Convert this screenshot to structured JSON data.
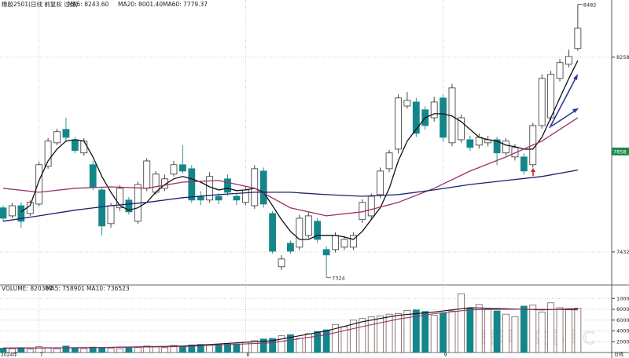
{
  "chart_data": {
    "type": "candlestick",
    "title": "橡胶2501(日线 前复权 过滤)",
    "indicators": [
      "MA5: 8243.60",
      "MA20: 8001.40",
      "MA60: 7779.37"
    ],
    "indicator_colors": [
      "#111111",
      "#9b2f6e",
      "#1b1f6b"
    ],
    "categories": [
      "2024年",
      null,
      null,
      null,
      "7",
      null,
      null,
      null,
      null,
      null,
      null,
      null,
      null,
      null,
      null,
      null,
      null,
      null,
      null,
      null,
      null,
      null,
      null,
      null,
      null,
      null,
      null,
      "8",
      null,
      null,
      null,
      null,
      null,
      null,
      null,
      null,
      null,
      null,
      null,
      null,
      null,
      null,
      null,
      null,
      null,
      null,
      null,
      null,
      null,
      "9",
      null,
      null,
      null,
      null,
      null,
      null,
      null,
      null,
      null,
      null,
      null,
      null,
      null,
      null,
      null
    ],
    "open": [
      7619,
      7585,
      7628,
      7595,
      7635,
      7795,
      7895,
      7952,
      7908,
      7852,
      7802,
      7695,
      7552,
      7619,
      7652,
      7562,
      7702,
      7685,
      7702,
      7762,
      7802,
      7785,
      7668,
      7652,
      7668,
      7742,
      7668,
      7642,
      7628,
      7775,
      7595,
      7369,
      7469,
      7452,
      7502,
      7562,
      7442,
      7442,
      7452,
      7452,
      7569,
      7585,
      7675,
      7785,
      7868,
      8051,
      8068,
      8035,
      8001,
      8085,
      7895,
      7908,
      7908,
      7885,
      7895,
      7908,
      7852,
      7835,
      7835,
      7802,
      7968,
      8001,
      8168,
      8228,
      8295
    ],
    "high": [
      7628,
      7640,
      7642,
      7650,
      7815,
      7915,
      7955,
      8001,
      7920,
      7915,
      7818,
      7705,
      7640,
      7715,
      7665,
      7730,
      7830,
      7775,
      7760,
      7818,
      7885,
      7800,
      7690,
      7770,
      7680,
      7760,
      7680,
      7710,
      7800,
      7790,
      7605,
      7418,
      7480,
      7590,
      7600,
      7575,
      7455,
      7515,
      7500,
      7515,
      7655,
      7680,
      7790,
      7865,
      8100,
      8110,
      8085,
      8050,
      8090,
      8100,
      8145,
      8015,
      7925,
      7935,
      7925,
      7920,
      7915,
      7890,
      7850,
      7980,
      8185,
      8200,
      8250,
      8290,
      8482
    ],
    "low": [
      7562,
      7575,
      7535,
      7585,
      7625,
      7785,
      7885,
      7902,
      7850,
      7840,
      7695,
      7502,
      7535,
      7605,
      7590,
      7550,
      7690,
      7675,
      7690,
      7752,
      7765,
      7640,
      7630,
      7640,
      7635,
      7670,
      7630,
      7630,
      7615,
      7620,
      7425,
      7355,
      7425,
      7440,
      7490,
      7470,
      7324,
      7430,
      7440,
      7440,
      7555,
      7570,
      7660,
      7770,
      7850,
      8040,
      7920,
      7950,
      7985,
      7900,
      7880,
      7895,
      7860,
      7870,
      7880,
      7800,
      7840,
      7820,
      7760,
      7790,
      7955,
      7990,
      8155,
      8215,
      8285
    ],
    "close": [
      7575,
      7628,
      7562,
      7642,
      7802,
      7902,
      7942,
      7918,
      7862,
      7902,
      7708,
      7542,
      7628,
      7702,
      7602,
      7718,
      7818,
      7762,
      7742,
      7802,
      7775,
      7652,
      7652,
      7752,
      7652,
      7685,
      7652,
      7695,
      7785,
      7635,
      7435,
      7402,
      7435,
      7575,
      7585,
      7485,
      7419,
      7502,
      7485,
      7502,
      7642,
      7668,
      7775,
      7852,
      8085,
      8075,
      7935,
      7968,
      8068,
      7918,
      8128,
      8001,
      7875,
      7918,
      7908,
      7852,
      7902,
      7875,
      7775,
      7968,
      8168,
      8185,
      8235,
      8261,
      8381
    ],
    "up_color": "#ffffff",
    "up_edge": "#333333",
    "down_color": "#14868a",
    "ylim": [
      7295,
      8494
    ],
    "yticks": [
      7432,
      8258
    ],
    "grid": true,
    "last_price": 7858,
    "ma_lines": [
      {
        "color": "#111111",
        "x": [
          2,
          3,
          4,
          5,
          6,
          7,
          8,
          9,
          10,
          11,
          12,
          13,
          14,
          15,
          16,
          17,
          18,
          19,
          20,
          21,
          22,
          23,
          24,
          25,
          26,
          27,
          28,
          29,
          30,
          31,
          32,
          33,
          34,
          35,
          36,
          37,
          38,
          39,
          40,
          41,
          42,
          43,
          44,
          45,
          46,
          47,
          48,
          49,
          50,
          51,
          52,
          53,
          54,
          55,
          56,
          57,
          58,
          59,
          60,
          61,
          62,
          63,
          64
        ],
        "values": [
          7602,
          7628,
          7735,
          7818,
          7868,
          7902,
          7908,
          7902,
          7835,
          7752,
          7685,
          7628,
          7609,
          7619,
          7642,
          7685,
          7718,
          7742,
          7752,
          7742,
          7728,
          7708,
          7695,
          7702,
          7692,
          7695,
          7702,
          7685,
          7628,
          7569,
          7519,
          7485,
          7485,
          7502,
          7502,
          7502,
          7495,
          7485,
          7519,
          7569,
          7619,
          7702,
          7818,
          7902,
          7952,
          8001,
          8018,
          8018,
          8008,
          7985,
          7952,
          7918,
          7908,
          7902,
          7885,
          7879,
          7868,
          7868,
          7918,
          8001,
          8085,
          8168,
          8243.6
        ]
      },
      {
        "color": "#9b2f6e",
        "x": [
          0,
          4,
          8,
          12,
          16,
          20,
          24,
          28,
          32,
          36,
          40,
          44,
          48,
          52,
          56,
          60,
          64
        ],
        "values": [
          7702,
          7685,
          7702,
          7708,
          7702,
          7728,
          7735,
          7702,
          7619,
          7585,
          7602,
          7642,
          7702,
          7775,
          7835,
          7902,
          8001.4
        ]
      },
      {
        "color": "#1b1f6b",
        "x": [
          0,
          4,
          8,
          12,
          16,
          20,
          24,
          28,
          32,
          36,
          40,
          44,
          48,
          52,
          56,
          60,
          64
        ],
        "values": [
          7562,
          7585,
          7609,
          7628,
          7642,
          7662,
          7675,
          7685,
          7685,
          7675,
          7668,
          7675,
          7695,
          7718,
          7735,
          7752,
          7779.37
        ]
      }
    ],
    "volume": {
      "type": "bar",
      "title": "VOLUME: 820307",
      "indicators": [
        "MA5: 758901",
        "MA10: 736523"
      ],
      "indicator_colors": [
        "#111111",
        "#9b2f6e"
      ],
      "values": [
        800,
        700,
        900,
        600,
        1100,
        900,
        700,
        1200,
        800,
        700,
        1000,
        900,
        800,
        700,
        1000,
        900,
        1200,
        1100,
        900,
        1300,
        1200,
        1400,
        1500,
        1300,
        1500,
        1700,
        1600,
        1900,
        2200,
        2500,
        2600,
        3100,
        3300,
        2600,
        3500,
        3900,
        4200,
        5200,
        4800,
        6000,
        6300,
        6600,
        6800,
        7100,
        7200,
        7800,
        7900,
        7600,
        6900,
        7300,
        7700,
        10900,
        8200,
        8900,
        8000,
        7700,
        7100,
        6600,
        8600,
        8800,
        7500,
        9200,
        8300,
        8100,
        8200
      ],
      "ylim": [
        0,
        12000
      ],
      "yticks": [
        2000,
        4000,
        6000,
        8000,
        10000
      ],
      "ma_lines": [
        {
          "color": "#111111",
          "x": [
            0,
            10,
            20,
            30,
            36,
            40,
            44,
            48,
            52,
            56,
            60,
            64
          ],
          "values": [
            800,
            900,
            1200,
            2200,
            4000,
            5700,
            6900,
            7500,
            8300,
            8100,
            7900,
            8100
          ]
        },
        {
          "color": "#9b2f6e",
          "x": [
            0,
            10,
            20,
            30,
            36,
            40,
            44,
            48,
            52,
            56,
            60,
            64
          ],
          "values": [
            850,
            900,
            1100,
            1800,
            3300,
            4800,
            6200,
            7200,
            7900,
            8000,
            8000,
            7900
          ]
        }
      ]
    },
    "period": "日线",
    "watermark": "雪球 · 交易员C"
  }
}
